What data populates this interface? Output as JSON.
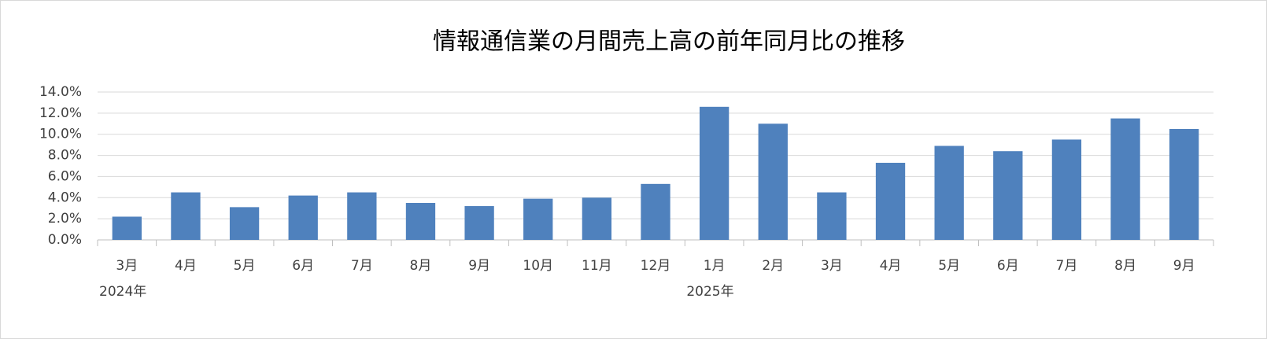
{
  "chart_data": {
    "type": "bar",
    "title": "情報通信業の月間売上高の前年同月比の推移",
    "category_groups": [
      {
        "label": "2024年",
        "categories": [
          "3月",
          "4月",
          "5月",
          "6月",
          "7月",
          "8月",
          "9月",
          "10月",
          "11月",
          "12月"
        ]
      },
      {
        "label": "2025年",
        "categories": [
          "1月",
          "2月",
          "3月",
          "4月",
          "5月",
          "6月",
          "7月",
          "8月",
          "9月"
        ]
      }
    ],
    "values": [
      2.2,
      4.5,
      3.1,
      4.2,
      4.5,
      3.5,
      3.2,
      3.9,
      4.0,
      5.3,
      12.6,
      11.0,
      4.5,
      7.3,
      8.9,
      8.4,
      9.5,
      11.5,
      10.5
    ],
    "color": "#4f81bd",
    "ylim": [
      0,
      14
    ],
    "yticks": [
      {
        "value": 0,
        "label": "0.0%"
      },
      {
        "value": 2,
        "label": "2.0%"
      },
      {
        "value": 4,
        "label": "4.0%"
      },
      {
        "value": 6,
        "label": "6.0%"
      },
      {
        "value": 8,
        "label": "8.0%"
      },
      {
        "value": 10,
        "label": "10.0%"
      },
      {
        "value": 12,
        "label": "12.0%"
      },
      {
        "value": 14,
        "label": "14.0%"
      }
    ],
    "grid": true
  }
}
